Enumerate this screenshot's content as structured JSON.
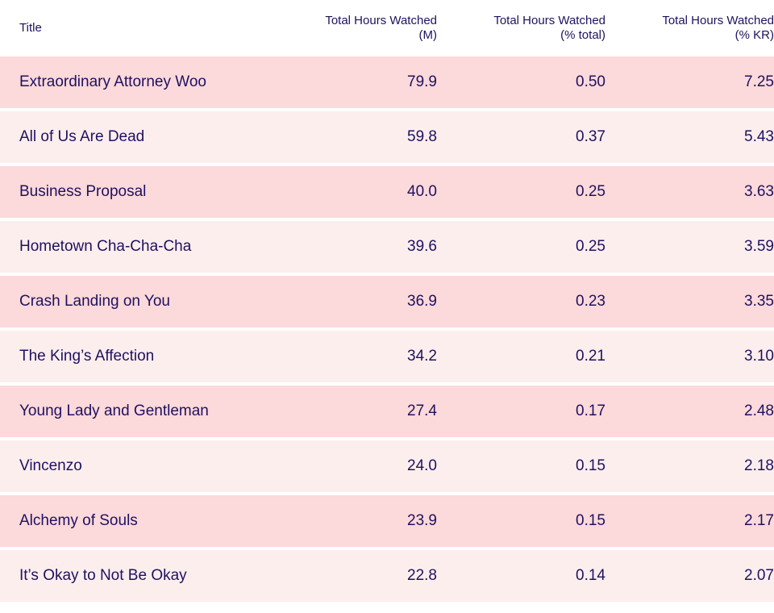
{
  "chart_data": {
    "type": "table",
    "columns": [
      "Title",
      "Total Hours Watched\n(M)",
      "Total Hours Watched\n(% total)",
      "Total Hours Watched\n(% KR)"
    ],
    "column_lines": [
      [
        "Title"
      ],
      [
        "Total Hours Watched",
        "(M)"
      ],
      [
        "Total Hours Watched",
        "(% total)"
      ],
      [
        "Total Hours Watched",
        "(% KR)"
      ]
    ],
    "rows": [
      [
        "Extraordinary Attorney Woo",
        "79.9",
        "0.50",
        "7.25"
      ],
      [
        "All of Us Are Dead",
        "59.8",
        "0.37",
        "5.43"
      ],
      [
        "Business Proposal",
        "40.0",
        "0.25",
        "3.63"
      ],
      [
        "Hometown Cha-Cha-Cha",
        "39.6",
        "0.25",
        "3.59"
      ],
      [
        "Crash Landing on You",
        "36.9",
        "0.23",
        "3.35"
      ],
      [
        "The King’s Affection",
        "34.2",
        "0.21",
        "3.10"
      ],
      [
        "Young Lady and Gentleman",
        "27.4",
        "0.17",
        "2.48"
      ],
      [
        "Vincenzo",
        "24.0",
        "0.15",
        "2.18"
      ],
      [
        "Alchemy of Souls",
        "23.9",
        "0.15",
        "2.17"
      ],
      [
        "It’s Okay to Not Be Okay",
        "22.8",
        "0.14",
        "2.07"
      ]
    ]
  },
  "colors": {
    "text": "#1f1160",
    "row_odd": "#fcd9da",
    "row_even": "#fdeeee",
    "header_bg": "#ffffff"
  }
}
